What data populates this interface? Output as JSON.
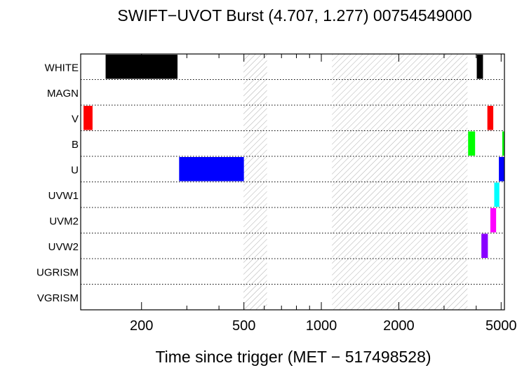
{
  "chart_data": {
    "type": "timeline",
    "title": "SWIFT−UVOT Burst (4.707, 1.277) 00754549000",
    "xlabel": "Time since trigger (MET − 517498528)",
    "xscale": "log",
    "xlim": [
      116,
      5150
    ],
    "filters": [
      "WHITE",
      "MAGN",
      "V",
      "B",
      "U",
      "UVW1",
      "UVM2",
      "UVW2",
      "UGRISM",
      "VGRISM"
    ],
    "xticks": [
      {
        "value": 200,
        "label": "200"
      },
      {
        "value": 500,
        "label": "500"
      },
      {
        "value": 1000,
        "label": "1000"
      },
      {
        "value": 2000,
        "label": "2000"
      },
      {
        "value": 5000,
        "label": "5000"
      }
    ],
    "minor_ticks": [
      300,
      400,
      600,
      700,
      800,
      900,
      3000,
      4000
    ],
    "gaps": [
      [
        498,
        615
      ],
      [
        1100,
        3700
      ]
    ],
    "exposures": [
      {
        "filter": "WHITE",
        "start": 145,
        "end": 276,
        "color": "#000000"
      },
      {
        "filter": "WHITE",
        "start": 4020,
        "end": 4250,
        "color": "#000000"
      },
      {
        "filter": "V",
        "start": 119,
        "end": 129,
        "color": "#ff0000"
      },
      {
        "filter": "V",
        "start": 4420,
        "end": 4660,
        "color": "#ff0000"
      },
      {
        "filter": "B",
        "start": 3720,
        "end": 3960,
        "color": "#00ff00"
      },
      {
        "filter": "B",
        "start": 5050,
        "end": 5150,
        "color": "#00ff00"
      },
      {
        "filter": "U",
        "start": 280,
        "end": 500,
        "color": "#0000ff"
      },
      {
        "filter": "U",
        "start": 4900,
        "end": 5140,
        "color": "#0000ff"
      },
      {
        "filter": "UVW1",
        "start": 4700,
        "end": 4920,
        "color": "#00ffff"
      },
      {
        "filter": "UVM2",
        "start": 4540,
        "end": 4780,
        "color": "#ff00ff"
      },
      {
        "filter": "UVW2",
        "start": 4190,
        "end": 4440,
        "color": "#8800ff"
      }
    ]
  }
}
